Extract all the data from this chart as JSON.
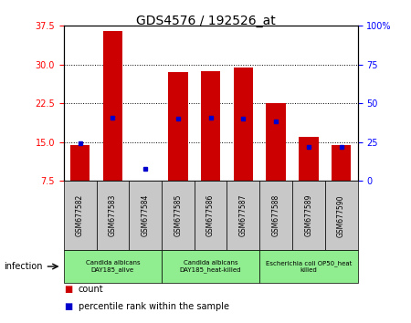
{
  "title": "GDS4576 / 192526_at",
  "samples": [
    "GSM677582",
    "GSM677583",
    "GSM677584",
    "GSM677585",
    "GSM677586",
    "GSM677587",
    "GSM677588",
    "GSM677589",
    "GSM677590"
  ],
  "counts": [
    14.5,
    36.5,
    7.5,
    28.5,
    28.8,
    29.5,
    22.5,
    16.0,
    14.5
  ],
  "percentile_ranks": [
    24.5,
    40.5,
    7.5,
    40.0,
    40.5,
    40.0,
    38.5,
    22.0,
    22.0
  ],
  "ylim_left": [
    7.5,
    37.5
  ],
  "ylim_right": [
    0,
    100
  ],
  "yticks_left": [
    7.5,
    15.0,
    22.5,
    30.0,
    37.5
  ],
  "yticks_right": [
    0,
    25,
    50,
    75,
    100
  ],
  "ytick_labels_right": [
    "0",
    "25",
    "50",
    "75",
    "100%"
  ],
  "bar_color": "#cc0000",
  "dot_color": "#0000cc",
  "groups": [
    {
      "label": "Candida albicans\nDAY185_alive",
      "start": 0,
      "end": 3,
      "color": "#90ee90"
    },
    {
      "label": "Candida albicans\nDAY185_heat-killed",
      "start": 3,
      "end": 6,
      "color": "#90ee90"
    },
    {
      "label": "Escherichia coli OP50_heat\nkilled",
      "start": 6,
      "end": 9,
      "color": "#90ee90"
    }
  ],
  "group_label_left": "infection",
  "legend_count_label": "count",
  "legend_percentile_label": "percentile rank within the sample",
  "sample_box_color": "#c8c8c8"
}
